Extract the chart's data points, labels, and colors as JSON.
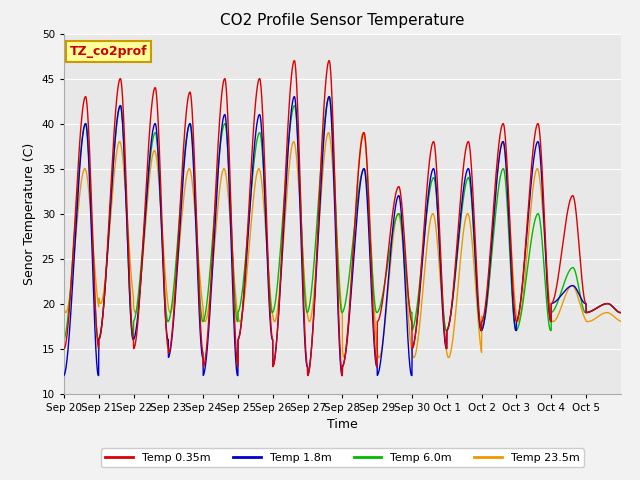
{
  "title": "CO2 Profile Sensor Temperature",
  "ylabel": "Senor Temperature (C)",
  "xlabel": "Time",
  "ylim": [
    10,
    50
  ],
  "xlim": [
    0,
    16
  ],
  "annotation": "TZ_co2prof",
  "annotation_color": "#cc0000",
  "annotation_bg": "#ffff99",
  "annotation_border": "#cc9900",
  "background_color": "#e8e8e8",
  "grid_color": "#ffffff",
  "fig_bg": "#f2f2f2",
  "series": [
    {
      "label": "Temp 0.35m",
      "color": "#dd0000"
    },
    {
      "label": "Temp 1.8m",
      "color": "#0000cc"
    },
    {
      "label": "Temp 6.0m",
      "color": "#00bb00"
    },
    {
      "label": "Temp 23.5m",
      "color": "#ee9900"
    }
  ],
  "xtick_labels": [
    "Sep 20",
    "Sep 21",
    "Sep 22",
    "Sep 23",
    "Sep 24",
    "Sep 25",
    "Sep 26",
    "Sep 27",
    "Sep 28",
    "Sep 29",
    "Sep 30",
    "Oct 1",
    "Oct 2",
    "Oct 3",
    "Oct 4",
    "Oct 5"
  ],
  "yticks": [
    10,
    15,
    20,
    25,
    30,
    35,
    40,
    45,
    50
  ],
  "title_fontsize": 11,
  "label_fontsize": 9,
  "tick_fontsize": 7.5,
  "legend_fontsize": 8,
  "red_peaks": [
    43,
    45,
    44,
    43.5,
    45,
    45,
    47,
    47,
    39,
    33,
    38,
    38,
    40,
    40,
    32,
    20
  ],
  "red_troughs": [
    15,
    16,
    15,
    14.5,
    13,
    16,
    13,
    12,
    13,
    18,
    15,
    17,
    18,
    18,
    20,
    19
  ],
  "blue_peaks": [
    40,
    42,
    40,
    40,
    41,
    41,
    43,
    43,
    35,
    32,
    35,
    35,
    38,
    38,
    22,
    20
  ],
  "blue_troughs": [
    12,
    16,
    16,
    14,
    12,
    16,
    13,
    12,
    13,
    12,
    15,
    17,
    17,
    18,
    20,
    19
  ],
  "green_peaks": [
    40,
    42,
    39,
    40,
    40,
    39,
    42,
    43,
    35,
    30,
    34,
    34,
    35,
    30,
    24,
    20
  ],
  "green_troughs": [
    16,
    16,
    18,
    18,
    18,
    19,
    19,
    19,
    19,
    19,
    17,
    17,
    17,
    17,
    19,
    19
  ],
  "orange_peaks": [
    35,
    38,
    37,
    35,
    35,
    35,
    38,
    39,
    39,
    30,
    30,
    30,
    38,
    35,
    22,
    19
  ],
  "orange_troughs": [
    19,
    20,
    19,
    19,
    18,
    18,
    18,
    18,
    14,
    14,
    14,
    14,
    18,
    18,
    18,
    18
  ]
}
